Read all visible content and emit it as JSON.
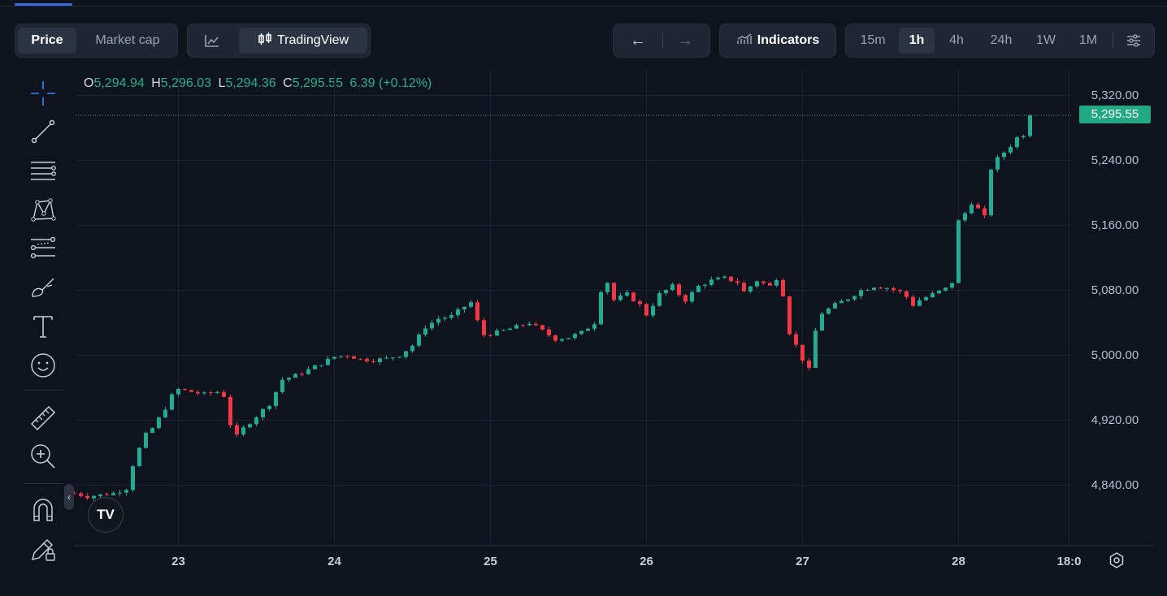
{
  "tabs": {
    "price": "Price",
    "market_cap": "Market cap"
  },
  "chart_modes": {
    "tradingview": "TradingView"
  },
  "nav": {
    "back": "←",
    "forward": "→"
  },
  "indicators_label": "Indicators",
  "timeframes": [
    "15m",
    "1h",
    "4h",
    "24h",
    "1W",
    "1M"
  ],
  "active_timeframe": "1h",
  "ohlc": {
    "o_label": "O",
    "o": "5,294.94",
    "h_label": "H",
    "h": "5,296.03",
    "l_label": "L",
    "l": "5,294.36",
    "c_label": "C",
    "c": "5,295.55",
    "change": "6.39 (+0.12%)"
  },
  "last_price": "5,295.55",
  "colors": {
    "up": "#22ab94",
    "down": "#f23645",
    "background": "#0e131e",
    "grid": "#1b2230"
  },
  "logo_text": "TV",
  "chart_data": {
    "type": "candlestick",
    "title": "",
    "ylim": [
      4796,
      5336
    ],
    "y_ticks": [
      5320,
      5240,
      5160,
      5080,
      5000,
      4920,
      4840
    ],
    "y_tick_labels": [
      "5,320.00",
      "5,240.00",
      "5,160.00",
      "5,080.00",
      "5,000.00",
      "4,920.00",
      "4,840.00"
    ],
    "x_ticks": [
      {
        "label": "23",
        "hour": 0
      },
      {
        "label": "24",
        "hour": 24
      },
      {
        "label": "25",
        "hour": 48
      },
      {
        "label": "26",
        "hour": 72
      },
      {
        "label": "27",
        "hour": 96
      },
      {
        "label": "28",
        "hour": 120
      },
      {
        "label": "18:0",
        "hour": 137
      }
    ],
    "last_price": 5295.55,
    "close_waypoints": [
      [
        -16,
        4830
      ],
      [
        -14,
        4826
      ],
      [
        -12,
        4828
      ],
      [
        -10,
        4830
      ],
      [
        -8,
        4836
      ],
      [
        -7,
        4865
      ],
      [
        -6,
        4885
      ],
      [
        -5,
        4902
      ],
      [
        -4,
        4910
      ],
      [
        -3,
        4922
      ],
      [
        -2,
        4935
      ],
      [
        -1,
        4950
      ],
      [
        0,
        4958
      ],
      [
        2,
        4955
      ],
      [
        4,
        4952
      ],
      [
        6,
        4955
      ],
      [
        7,
        4950
      ],
      [
        8,
        4915
      ],
      [
        9,
        4900
      ],
      [
        10,
        4910
      ],
      [
        12,
        4925
      ],
      [
        14,
        4940
      ],
      [
        16,
        4970
      ],
      [
        18,
        4975
      ],
      [
        20,
        4982
      ],
      [
        22,
        4990
      ],
      [
        24,
        4998
      ],
      [
        26,
        5000
      ],
      [
        28,
        4995
      ],
      [
        30,
        4994
      ],
      [
        32,
        4996
      ],
      [
        34,
        5000
      ],
      [
        36,
        5012
      ],
      [
        38,
        5035
      ],
      [
        40,
        5045
      ],
      [
        42,
        5048
      ],
      [
        44,
        5060
      ],
      [
        45,
        5065
      ],
      [
        46,
        5042
      ],
      [
        47,
        5025
      ],
      [
        49,
        5028
      ],
      [
        52,
        5035
      ],
      [
        54,
        5040
      ],
      [
        56,
        5030
      ],
      [
        58,
        5020
      ],
      [
        60,
        5022
      ],
      [
        62,
        5028
      ],
      [
        64,
        5040
      ],
      [
        65,
        5080
      ],
      [
        66,
        5090
      ],
      [
        67,
        5068
      ],
      [
        69,
        5075
      ],
      [
        71,
        5062
      ],
      [
        72,
        5050
      ],
      [
        74,
        5075
      ],
      [
        76,
        5085
      ],
      [
        77,
        5075
      ],
      [
        78,
        5068
      ],
      [
        80,
        5085
      ],
      [
        82,
        5092
      ],
      [
        84,
        5095
      ],
      [
        86,
        5090
      ],
      [
        87,
        5078
      ],
      [
        89,
        5092
      ],
      [
        91,
        5085
      ],
      [
        92,
        5095
      ],
      [
        93,
        5075
      ],
      [
        94,
        5028
      ],
      [
        95,
        5012
      ],
      [
        96,
        4995
      ],
      [
        97,
        4982
      ],
      [
        98,
        5030
      ],
      [
        99,
        5052
      ],
      [
        101,
        5062
      ],
      [
        103,
        5070
      ],
      [
        105,
        5080
      ],
      [
        107,
        5085
      ],
      [
        109,
        5083
      ],
      [
        111,
        5078
      ],
      [
        112,
        5072
      ],
      [
        113,
        5062
      ],
      [
        114,
        5068
      ],
      [
        116,
        5075
      ],
      [
        118,
        5082
      ],
      [
        119,
        5090
      ],
      [
        120,
        5165
      ],
      [
        121,
        5175
      ],
      [
        122,
        5188
      ],
      [
        123,
        5180
      ],
      [
        124,
        5170
      ],
      [
        125,
        5230
      ],
      [
        126,
        5242
      ],
      [
        127,
        5250
      ],
      [
        128,
        5258
      ],
      [
        129,
        5268
      ],
      [
        130,
        5272
      ],
      [
        131,
        5295.55
      ]
    ]
  }
}
